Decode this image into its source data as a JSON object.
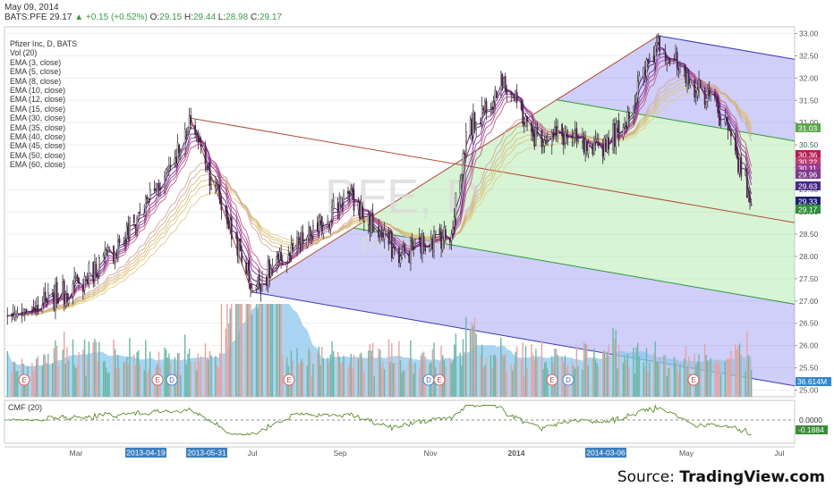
{
  "header": {
    "date": "May 09, 2014",
    "symbol": "BATS:PFE",
    "last": "29.17",
    "change": "+0.15 (+0.52%)",
    "o_label": "O:",
    "o": "29.15",
    "h_label": "H:",
    "h": "29.44",
    "l_label": "L:",
    "l": "28.98",
    "c_label": "C:",
    "c": "29.17"
  },
  "footer": {
    "source_prefix": "Source: ",
    "source_brand": "TradingView.com"
  },
  "chart_data": {
    "type": "line",
    "title": "Pfizer Inc, D, BATS",
    "watermark_symbol": "PFE, D",
    "watermark_name": "Pfizer Inc",
    "legend": [
      "Vol (20)",
      "EMA (3, close)",
      "EMA (5, close)",
      "EMA (8, close)",
      "EMA (10, close)",
      "EMA (12, close)",
      "EMA (15, close)",
      "EMA (30, close)",
      "EMA (35, close)",
      "EMA (40, close)",
      "EMA (45, close)",
      "EMA (50, close)",
      "EMA (60, close)"
    ],
    "price_axis": {
      "ylim": [
        24.85,
        33.15
      ],
      "ticks": [
        "33.00",
        "32.50",
        "32.00",
        "31.50",
        "31.00",
        "30.50",
        "30.00",
        "29.50",
        "29.00",
        "28.50",
        "28.00",
        "27.50",
        "27.00",
        "26.50",
        "26.00",
        "25.50",
        "25.00"
      ]
    },
    "x_labels": [
      "Mar",
      "Jul",
      "Sep",
      "Nov",
      "2014",
      "May",
      "Jul"
    ],
    "date_badges": [
      "2013-04-19",
      "2013-05-31",
      "2014-03-06"
    ],
    "price_labels": [
      {
        "text": "31.03",
        "value": 31.03,
        "color": "#5ea64f"
      },
      {
        "text": "30.36",
        "value": 30.36,
        "color": "#b51e4e"
      },
      {
        "text": "30.22",
        "value": 30.22,
        "color": "#c23a73"
      },
      {
        "text": "30.11",
        "value": 30.11,
        "color": "#9b3d93"
      },
      {
        "text": "29.96",
        "value": 29.96,
        "color": "#7a3a8c"
      },
      {
        "text": "29.63",
        "value": 29.63,
        "color": "#4a2a8a"
      },
      {
        "text": "29.33",
        "value": 29.33,
        "color": "#1d1f6e"
      },
      {
        "text": "29.17",
        "value": 29.17,
        "color": "#2f8f3a"
      }
    ],
    "pivots": [
      {
        "date": "2013-04-19",
        "price": 31.1
      },
      {
        "date": "2013-05-31",
        "price": 27.2
      },
      {
        "date": "2014-03-06",
        "price": 32.95
      }
    ],
    "close_anchors": [
      {
        "date": "2013-01-02",
        "close": 26.8
      },
      {
        "date": "2013-02-01",
        "close": 27.4
      },
      {
        "date": "2013-03-01",
        "close": 28.3
      },
      {
        "date": "2013-04-01",
        "close": 29.8
      },
      {
        "date": "2013-04-19",
        "close": 31.0
      },
      {
        "date": "2013-05-06",
        "close": 29.6
      },
      {
        "date": "2013-05-31",
        "close": 27.3
      },
      {
        "date": "2013-06-20",
        "close": 27.9
      },
      {
        "date": "2013-07-15",
        "close": 28.6
      },
      {
        "date": "2013-08-05",
        "close": 29.4
      },
      {
        "date": "2013-08-23",
        "close": 28.6
      },
      {
        "date": "2013-09-10",
        "close": 28.0
      },
      {
        "date": "2013-10-01",
        "close": 28.4
      },
      {
        "date": "2013-10-15",
        "close": 28.5
      },
      {
        "date": "2013-10-25",
        "close": 30.8
      },
      {
        "date": "2013-11-20",
        "close": 32.0
      },
      {
        "date": "2013-12-10",
        "close": 30.7
      },
      {
        "date": "2014-01-02",
        "close": 30.7
      },
      {
        "date": "2014-01-20",
        "close": 30.3
      },
      {
        "date": "2014-02-10",
        "close": 30.9
      },
      {
        "date": "2014-03-06",
        "close": 32.9
      },
      {
        "date": "2014-03-25",
        "close": 31.9
      },
      {
        "date": "2014-04-10",
        "close": 31.6
      },
      {
        "date": "2014-04-25",
        "close": 30.7
      },
      {
        "date": "2014-05-02",
        "close": 29.8
      },
      {
        "date": "2014-05-09",
        "close": 29.17
      }
    ],
    "volume": {
      "label": "36.614M",
      "value_millions": 36.614,
      "events": [
        "E",
        "E",
        "D",
        "E",
        "D",
        "E",
        "E",
        "D",
        "E",
        "D",
        "E"
      ]
    },
    "cmf": {
      "label": "CMF (20)",
      "values": [
        "0.0000",
        "-0.1884"
      ]
    }
  }
}
